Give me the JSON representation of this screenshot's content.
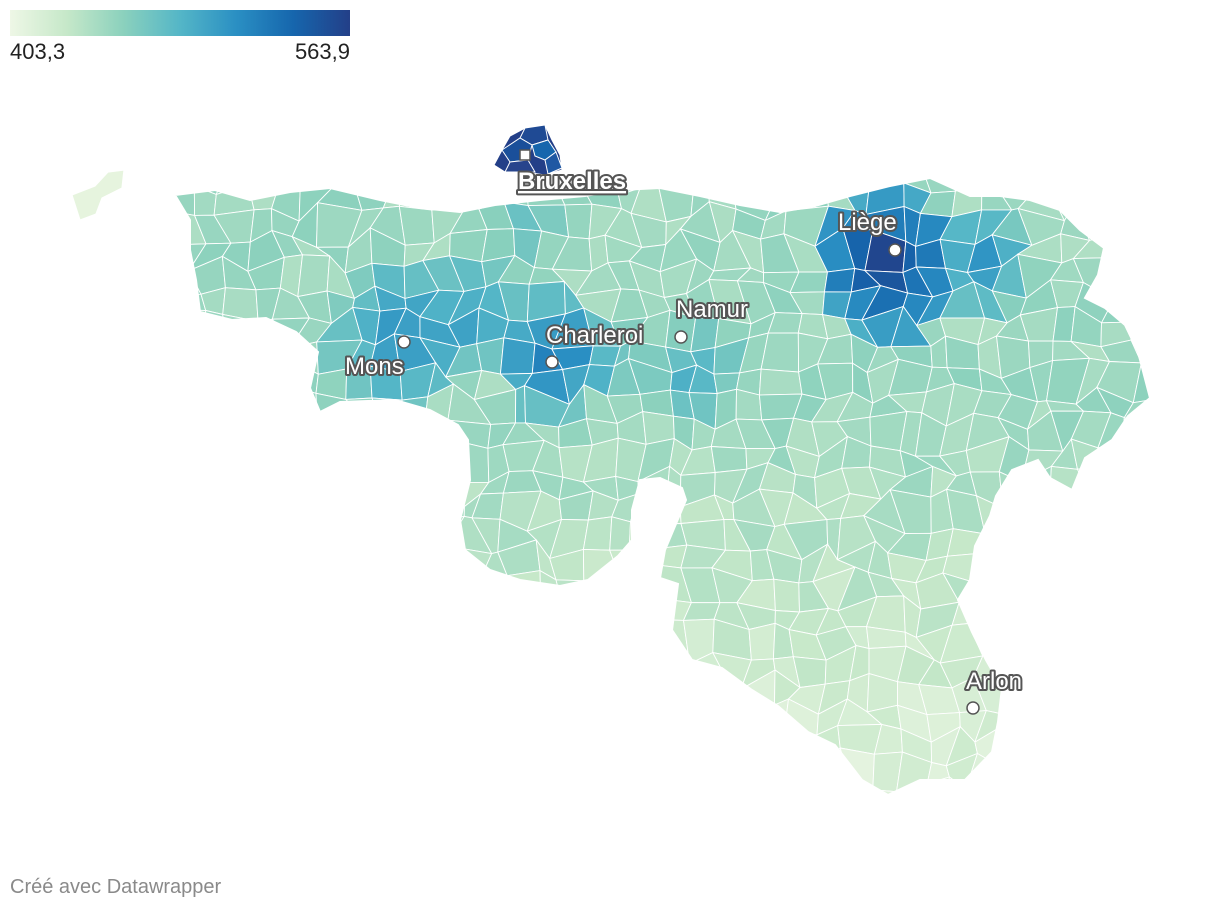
{
  "legend": {
    "min_label": "403,3",
    "max_label": "563,9",
    "min_value": 403.3,
    "max_value": 563.9,
    "colors": [
      "#eef7e6",
      "#c6e8c9",
      "#8bd1bd",
      "#54b6c7",
      "#2a8fc3",
      "#1666ad",
      "#233f88"
    ]
  },
  "cities": [
    {
      "name": "Bruxelles",
      "capital": true
    },
    {
      "name": "Liège",
      "capital": false
    },
    {
      "name": "Namur",
      "capital": false
    },
    {
      "name": "Charleroi",
      "capital": false
    },
    {
      "name": "Mons",
      "capital": false
    },
    {
      "name": "Arlon",
      "capital": false
    }
  ],
  "footer": {
    "credit": "Créé avec Datawrapper"
  },
  "map_colors": {
    "border": "#ffffff",
    "marker_fill": "#ffffff",
    "marker_stroke": "#555555"
  }
}
